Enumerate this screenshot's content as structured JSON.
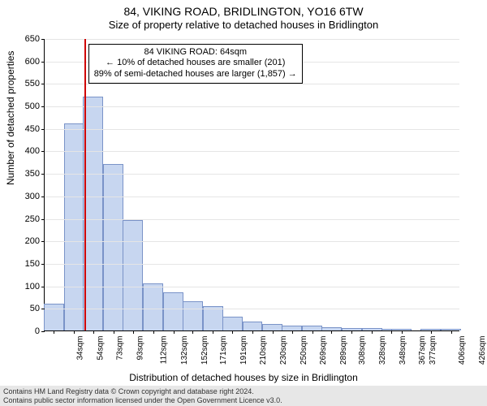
{
  "header": {
    "title": "84, VIKING ROAD, BRIDLINGTON, YO16 6TW",
    "subtitle": "Size of property relative to detached houses in Bridlington"
  },
  "chart": {
    "type": "bar",
    "ylabel": "Number of detached properties",
    "xlabel": "Distribution of detached houses by size in Bridlington",
    "bar_fill": "#c7d6f0",
    "bar_stroke": "#7a93c8",
    "grid_color": "#e5e5e5",
    "background_color": "#ffffff",
    "axis_color": "#000000",
    "label_fontsize": 12,
    "tick_fontsize": 11,
    "xlim": [
      25,
      435
    ],
    "ylim": [
      0,
      650
    ],
    "ytick_step": 50,
    "bar_width_sqm": 20,
    "reference_line": {
      "x_sqm": 64,
      "color": "#d00000"
    },
    "annotation": {
      "lines": [
        "84 VIKING ROAD: 64sqm",
        "← 10% of detached houses are smaller (201)",
        "89% of semi-detached houses are larger (1,857) →"
      ],
      "border_color": "#000000",
      "bg_color": "#ffffff",
      "fontsize": 11,
      "left_sqm": 68,
      "top_value": 640
    },
    "categories_sqm": [
      34,
      54,
      73,
      93,
      112,
      132,
      152,
      171,
      191,
      210,
      230,
      250,
      269,
      289,
      308,
      328,
      348,
      367,
      377,
      406,
      426
    ],
    "xtick_labels": [
      "34sqm",
      "54sqm",
      "73sqm",
      "93sqm",
      "112sqm",
      "132sqm",
      "152sqm",
      "171sqm",
      "191sqm",
      "210sqm",
      "230sqm",
      "250sqm",
      "269sqm",
      "289sqm",
      "308sqm",
      "328sqm",
      "348sqm",
      "367sqm",
      "377sqm",
      "406sqm",
      "426sqm"
    ],
    "values": [
      60,
      460,
      520,
      370,
      245,
      105,
      85,
      65,
      55,
      30,
      20,
      15,
      10,
      10,
      8,
      6,
      5,
      4,
      4,
      3,
      3
    ]
  },
  "attribution": {
    "line1": "Contains HM Land Registry data © Crown copyright and database right 2024.",
    "line2": "Contains public sector information licensed under the Open Government Licence v3.0."
  }
}
